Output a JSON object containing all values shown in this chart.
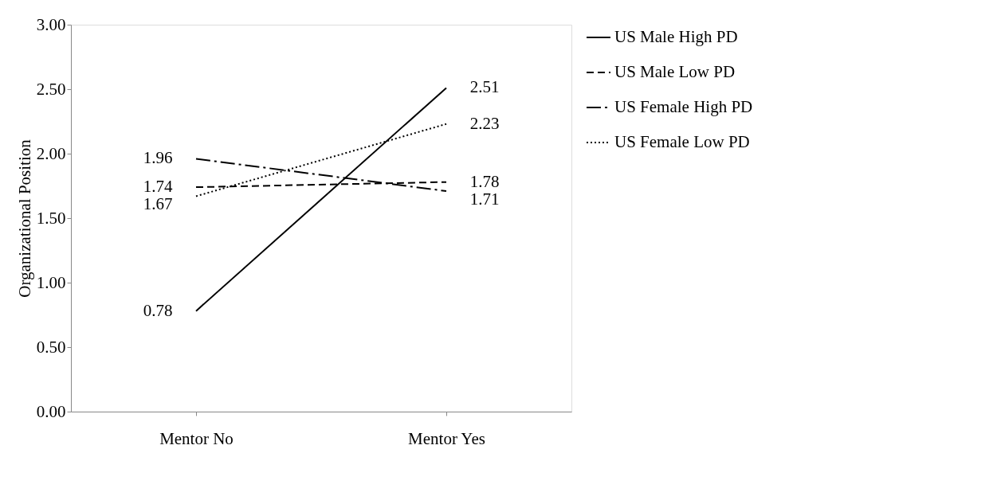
{
  "chart_data": {
    "type": "line",
    "ylabel": "Organizational Position",
    "categories": [
      "Mentor No",
      "Mentor Yes"
    ],
    "series": [
      {
        "name": "US Male High PD",
        "color": "#000000",
        "line_style": "solid",
        "values": [
          0.78,
          2.51
        ]
      },
      {
        "name": "US Male Low PD",
        "color": "#000000",
        "line_style": "dashed",
        "values": [
          1.74,
          1.78
        ]
      },
      {
        "name": "US Female High PD",
        "color": "#000000",
        "line_style": "dashdot",
        "values": [
          1.96,
          1.71
        ]
      },
      {
        "name": "US Female Low PD",
        "color": "#000000",
        "line_style": "dotted",
        "values": [
          1.67,
          2.23
        ]
      }
    ],
    "ylim": [
      0,
      3
    ],
    "yticks": [
      {
        "value": 0,
        "label": "0.00"
      },
      {
        "value": 0.5,
        "label": "0.50"
      },
      {
        "value": 1,
        "label": "1.00"
      },
      {
        "value": 1.5,
        "label": "1.50"
      },
      {
        "value": 2,
        "label": "2.00"
      },
      {
        "value": 2.5,
        "label": "2.50"
      },
      {
        "value": 3,
        "label": "3.00"
      }
    ],
    "data_labels": true,
    "grid": false,
    "legend": "right",
    "marker": "none"
  }
}
